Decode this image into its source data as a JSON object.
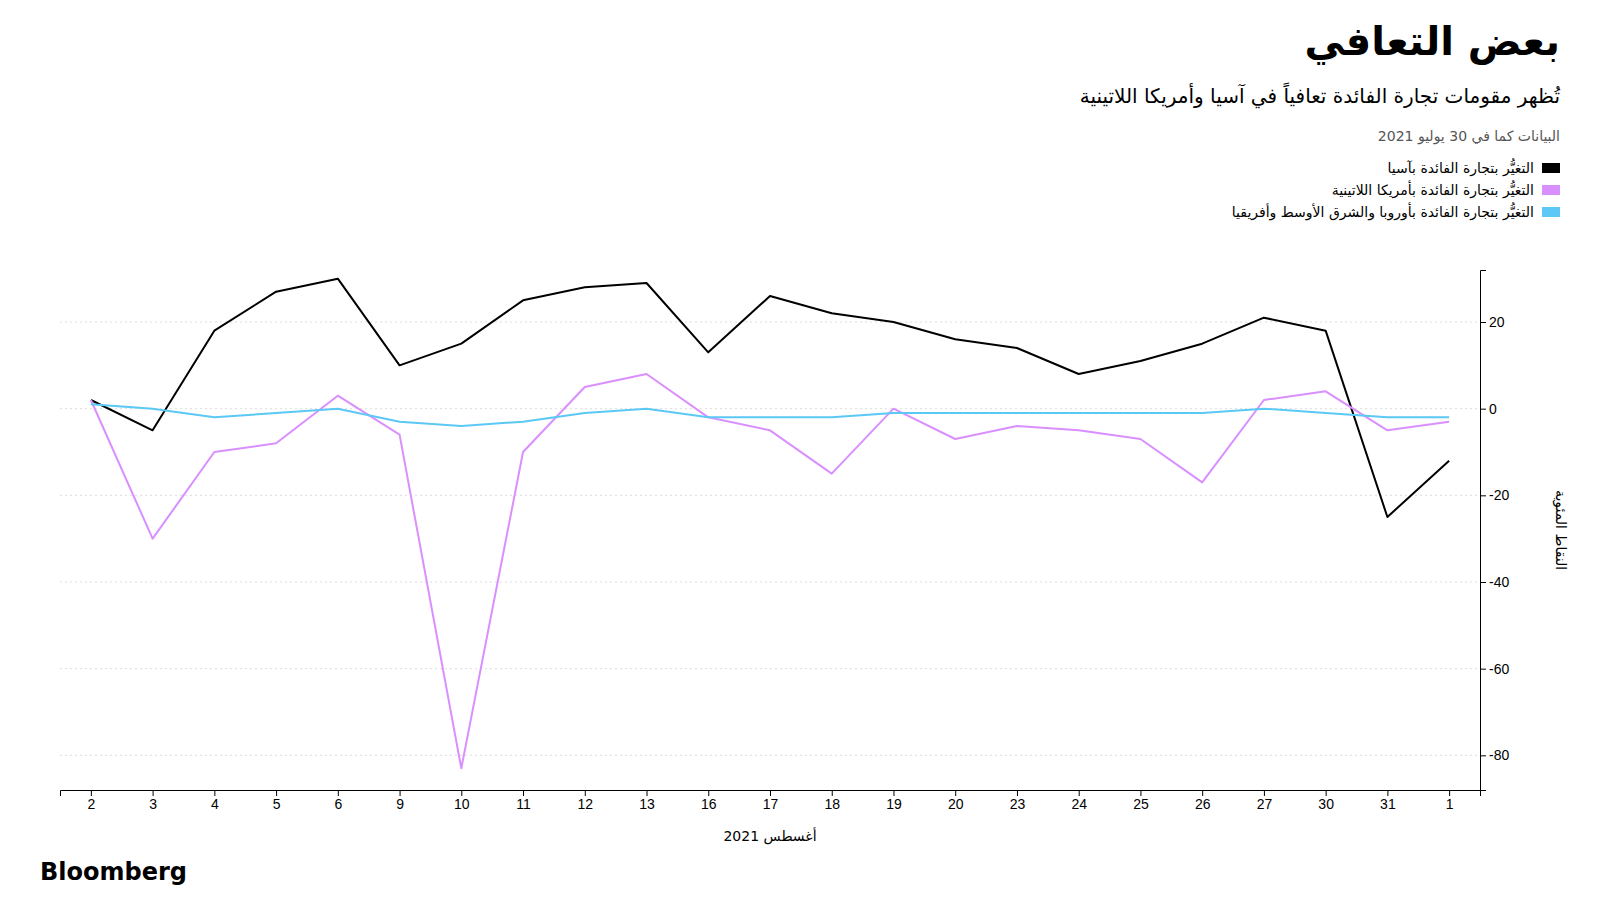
{
  "chart_data": {
    "type": "line",
    "title": "بعض التعافي",
    "subtitle": "تُظهر مقومات تجارة الفائدة تعافياً في آسيا وأمريكا اللاتينية",
    "annotations": [
      "البيانات كما في 30 يوليو 2021",
      "Bloomberg"
    ],
    "xlabel": "أغسطس 2021",
    "ylabel": "النقاط المئوية",
    "categories": [
      "2",
      "3",
      "4",
      "5",
      "6",
      "9",
      "10",
      "11",
      "12",
      "13",
      "16",
      "17",
      "18",
      "19",
      "20",
      "23",
      "24",
      "25",
      "26",
      "27",
      "30",
      "31",
      "1"
    ],
    "series": [
      {
        "name": "التغيُّر بتجارة الفائدة بآسيا",
        "color": "#000000",
        "values": [
          2,
          -5,
          18,
          27,
          30,
          10,
          15,
          25,
          28,
          29,
          13,
          26,
          22,
          20,
          16,
          14,
          8,
          11,
          15,
          21,
          18,
          -25,
          -12
        ]
      },
      {
        "name": "التغيُّر بتجارة الفائدة بأمريكا اللاتينية",
        "color": "#da8fff",
        "values": [
          2,
          -30,
          -10,
          -8,
          3,
          -6,
          -83,
          -10,
          5,
          8,
          -2,
          -5,
          -15,
          0,
          -7,
          -4,
          -5,
          -7,
          -17,
          2,
          4,
          -5,
          -3
        ]
      },
      {
        "name": "التغيُّر بتجارة الفائدة بأوروبا والشرق الأوسط وأفريقيا",
        "color": "#5bc8f5",
        "values": [
          1,
          0,
          -2,
          -1,
          0,
          -3,
          -4,
          -3,
          -1,
          0,
          -2,
          -2,
          -2,
          -1,
          -1,
          -1,
          -1,
          -1,
          -1,
          0,
          -1,
          -2,
          -2
        ]
      }
    ],
    "ylim": [
      -88,
      32
    ],
    "yticks": [
      -80,
      -60,
      -40,
      -20,
      0,
      20
    ],
    "grid": true,
    "legend": "top-right"
  }
}
